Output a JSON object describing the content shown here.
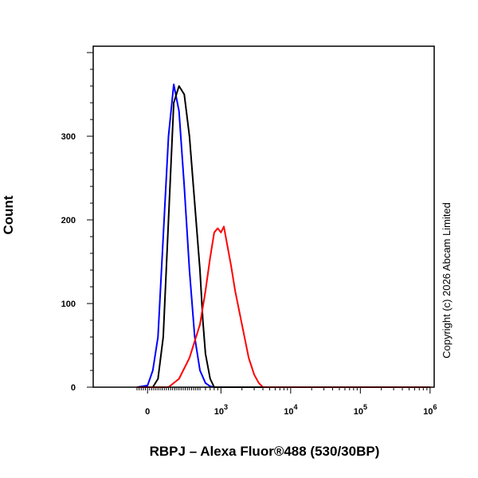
{
  "chart_data": {
    "type": "line",
    "title": "",
    "xlabel": "RBPJ – Alexa Fluor®488 (530/30BP)",
    "ylabel": "Count",
    "x_scale": "biexponential",
    "xlim": [
      -100,
      1000000
    ],
    "ylim": [
      0,
      400
    ],
    "grid": false,
    "legend": "none",
    "y_ticks": [
      {
        "value": 0,
        "label": "0"
      },
      {
        "value": 100,
        "label": "100"
      },
      {
        "value": 200,
        "label": "200"
      },
      {
        "value": 300,
        "label": "300"
      }
    ],
    "x_ticks": [
      {
        "value": 0,
        "label": "0",
        "base": "",
        "exp": ""
      },
      {
        "value": 1000,
        "label": "",
        "base": "10",
        "exp": "3"
      },
      {
        "value": 10000,
        "label": "",
        "base": "10",
        "exp": "4"
      },
      {
        "value": 100000,
        "label": "",
        "base": "10",
        "exp": "5"
      },
      {
        "value": 1000000,
        "label": "",
        "base": "10",
        "exp": "6"
      }
    ],
    "series": [
      {
        "color": "#0000ff",
        "x": [
          -100,
          0,
          50,
          100,
          150,
          200,
          250,
          300,
          350,
          400,
          450,
          500,
          600,
          700,
          800,
          1000000
        ],
        "y": [
          0,
          2,
          20,
          60,
          180,
          300,
          362,
          330,
          240,
          140,
          60,
          20,
          5,
          1,
          0,
          0
        ]
      },
      {
        "color": "#000000",
        "x": [
          -100,
          50,
          100,
          150,
          200,
          250,
          300,
          350,
          400,
          450,
          500,
          550,
          600,
          700,
          800,
          1000000
        ],
        "y": [
          0,
          0,
          10,
          60,
          200,
          340,
          360,
          350,
          300,
          220,
          140,
          80,
          40,
          10,
          0,
          0
        ]
      },
      {
        "color": "#ff0000",
        "x": [
          -100,
          200,
          300,
          400,
          500,
          600,
          700,
          800,
          900,
          1000,
          1100,
          1200,
          1400,
          1600,
          2000,
          2500,
          3000,
          3500,
          4000,
          1000000
        ],
        "y": [
          0,
          0,
          10,
          35,
          75,
          115,
          155,
          185,
          190,
          185,
          192,
          175,
          145,
          115,
          75,
          35,
          15,
          5,
          0,
          0
        ]
      }
    ]
  },
  "copyright": "Copyright (c) 2026 Abcam Limited"
}
